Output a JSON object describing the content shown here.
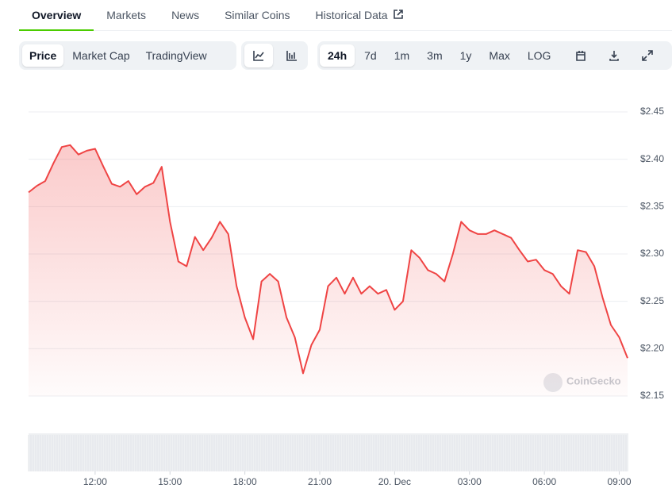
{
  "tabs": [
    "Overview",
    "Markets",
    "News",
    "Similar Coins",
    "Historical Data"
  ],
  "chart_modes": [
    "Price",
    "Market Cap",
    "TradingView"
  ],
  "ranges": [
    "24h",
    "7d",
    "1m",
    "3m",
    "1y",
    "Max",
    "LOG"
  ],
  "watermark": "CoinGecko",
  "chart_data": {
    "type": "area",
    "color": "#ef4444",
    "categories": [
      null,
      null,
      null,
      null,
      null,
      null,
      null,
      null,
      "12:00",
      null,
      null,
      null,
      null,
      null,
      null,
      null,
      null,
      "15:00",
      null,
      null,
      null,
      null,
      null,
      null,
      null,
      null,
      "18:00",
      null,
      null,
      null,
      null,
      null,
      null,
      null,
      null,
      "21:00",
      null,
      null,
      null,
      null,
      null,
      null,
      null,
      null,
      "20. Dec",
      null,
      null,
      null,
      null,
      null,
      null,
      null,
      null,
      "03:00",
      null,
      null,
      null,
      null,
      null,
      null,
      null,
      null,
      "06:00",
      null,
      null,
      null,
      null,
      null,
      null,
      null,
      null,
      "09:00",
      null
    ],
    "values": [
      2.365,
      2.372,
      2.377,
      2.396,
      2.413,
      2.415,
      2.405,
      2.409,
      2.411,
      2.392,
      2.374,
      2.371,
      2.377,
      2.363,
      2.371,
      2.375,
      2.392,
      2.334,
      2.292,
      2.287,
      2.318,
      2.304,
      2.317,
      2.334,
      2.321,
      2.266,
      2.233,
      2.21,
      2.271,
      2.279,
      2.271,
      2.233,
      2.212,
      2.174,
      2.204,
      2.22,
      2.266,
      2.275,
      2.258,
      2.275,
      2.258,
      2.266,
      2.258,
      2.262,
      2.241,
      2.25,
      2.304,
      2.296,
      2.283,
      2.279,
      2.271,
      2.3,
      2.334,
      2.325,
      2.321,
      2.321,
      2.325,
      2.321,
      2.317,
      2.304,
      2.292,
      2.294,
      2.283,
      2.279,
      2.266,
      2.258,
      2.304,
      2.302,
      2.287,
      2.254,
      2.225,
      2.212,
      2.19
    ],
    "ylim": [
      2.15,
      2.45
    ],
    "yticks": [
      {
        "value": 2.15,
        "label": "$2.15"
      },
      {
        "value": 2.2,
        "label": "$2.20"
      },
      {
        "value": 2.25,
        "label": "$2.25"
      },
      {
        "value": 2.3,
        "label": "$2.30"
      },
      {
        "value": 2.35,
        "label": "$2.35"
      },
      {
        "value": 2.4,
        "label": "$2.40"
      },
      {
        "value": 2.45,
        "label": "$2.45"
      }
    ],
    "grid": true
  }
}
